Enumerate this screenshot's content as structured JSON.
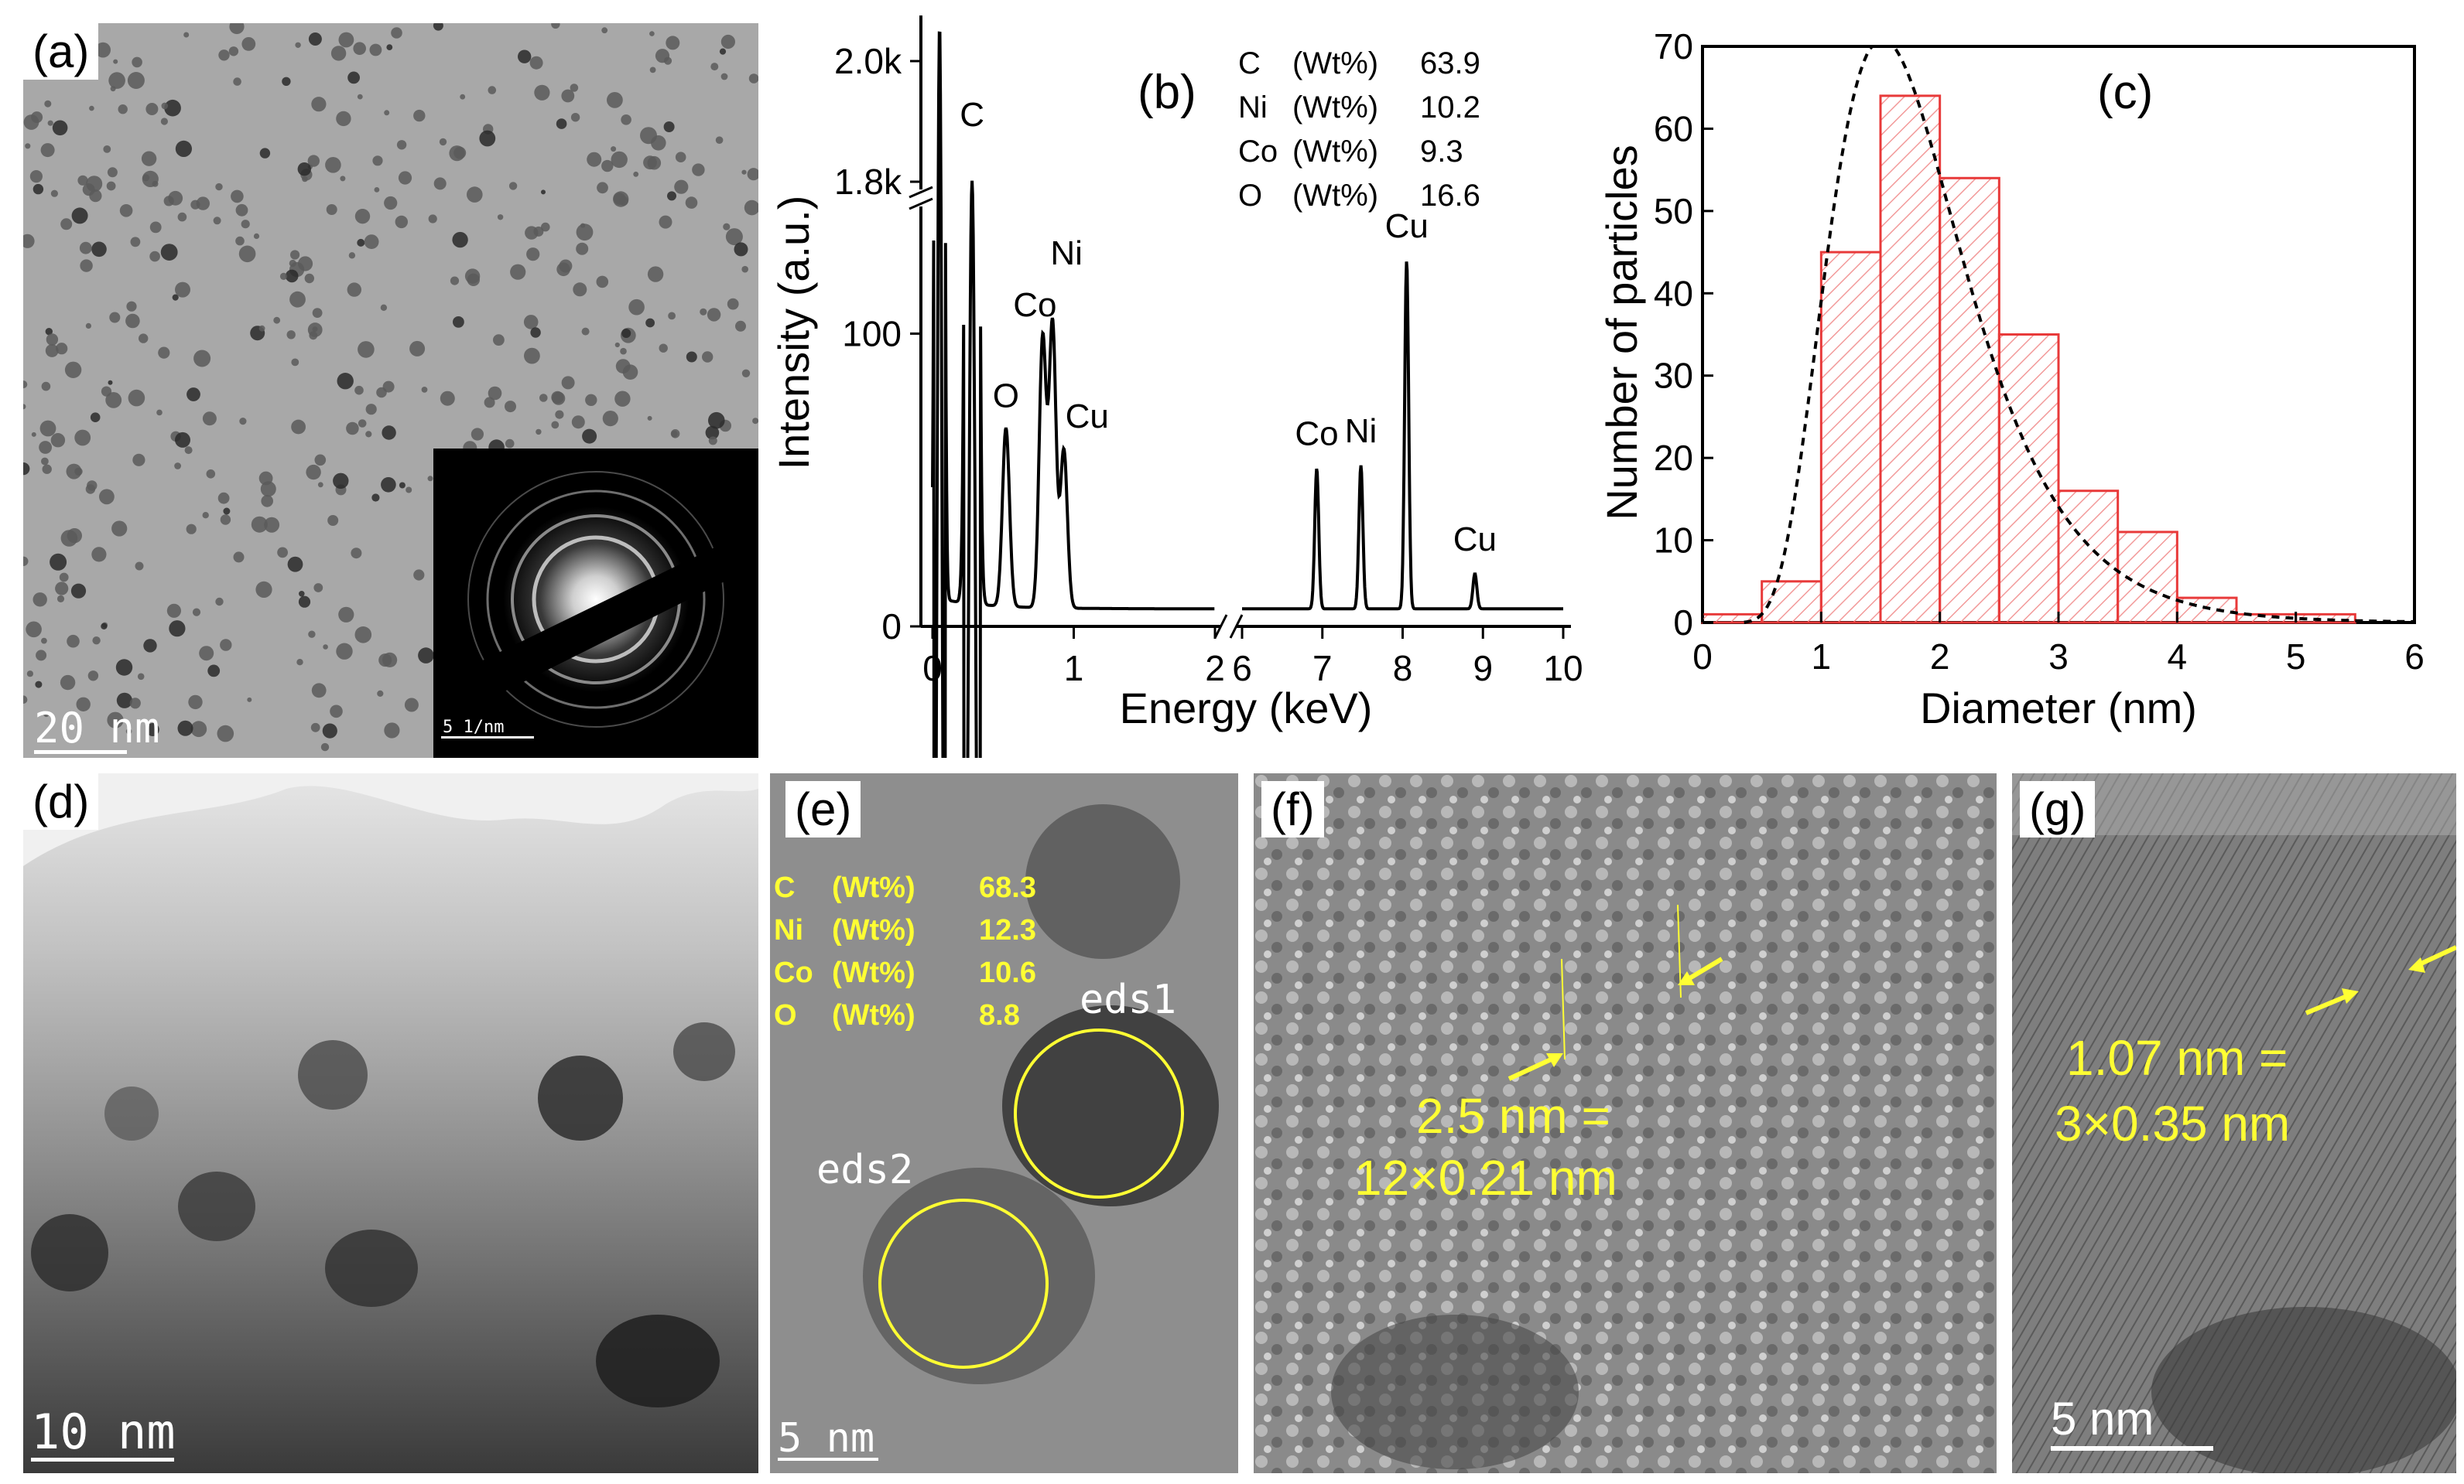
{
  "panels": {
    "a": {
      "label": "(a)",
      "scale_bar": "20 nm",
      "inset_scale_bar": "5 1/nm"
    },
    "b": {
      "label": "(b)",
      "composition": [
        {
          "el": "C",
          "unit": "(Wt%)",
          "val": "63.9"
        },
        {
          "el": "Ni",
          "unit": "(Wt%)",
          "val": "10.2"
        },
        {
          "el": "Co",
          "unit": "(Wt%)",
          "val": "9.3"
        },
        {
          "el": "O",
          "unit": "(Wt%)",
          "val": "16.6"
        }
      ]
    },
    "c": {
      "label": "(c)"
    },
    "d": {
      "label": "(d)",
      "scale_bar": "10 nm"
    },
    "e": {
      "label": "(e)",
      "scale_bar": "5 nm",
      "circle1": "eds1",
      "circle2": "eds2",
      "composition": [
        {
          "el": "C",
          "unit": "(Wt%)",
          "val": "68.3"
        },
        {
          "el": "Ni",
          "unit": "(Wt%)",
          "val": "12.3"
        },
        {
          "el": "Co",
          "unit": "(Wt%)",
          "val": "10.6"
        },
        {
          "el": "O",
          "unit": "(Wt%)",
          "val": "8.8"
        }
      ]
    },
    "f": {
      "label": "(f)",
      "annotation_line1": "2.5 nm =",
      "annotation_line2": "12×0.21 nm"
    },
    "g": {
      "label": "(g)",
      "scale_bar": "5 nm",
      "annotation_line1": "1.07 nm =",
      "annotation_line2": "3×0.35 nm"
    }
  },
  "chart_data": [
    {
      "type": "line",
      "panel": "b",
      "xlabel": "Energy (keV)",
      "ylabel": "Intensity (a.u.)",
      "axis_break_x": [
        2,
        6
      ],
      "axis_break_y": [
        140,
        1800
      ],
      "x_ticks_left": [
        "0",
        "1",
        "2"
      ],
      "x_ticks_right": [
        "6",
        "7",
        "8",
        "9",
        "10"
      ],
      "y_ticks_lower": [
        "0",
        "100"
      ],
      "y_ticks_upper": [
        "1.8k",
        "2.0k"
      ],
      "peaks": [
        {
          "label": "C",
          "x": 0.28,
          "y": 1800
        },
        {
          "label": "O",
          "x": 0.52,
          "y": 67
        },
        {
          "label": "Co",
          "x": 0.78,
          "y": 98
        },
        {
          "label": "Ni",
          "x": 0.85,
          "y": 103
        },
        {
          "label": "Cu",
          "x": 0.93,
          "y": 60
        },
        {
          "label": "Co",
          "x": 6.93,
          "y": 54
        },
        {
          "label": "Ni",
          "x": 7.48,
          "y": 55
        },
        {
          "label": "Cu",
          "x": 8.05,
          "y": 125
        },
        {
          "label": "Cu",
          "x": 8.9,
          "y": 18
        }
      ]
    },
    {
      "type": "bar",
      "panel": "c",
      "xlabel": "Diameter (nm)",
      "ylabel": "Number of particles",
      "xlim": [
        0,
        6
      ],
      "ylim": [
        0,
        70
      ],
      "x_ticks": [
        "0",
        "1",
        "2",
        "3",
        "4",
        "5",
        "6"
      ],
      "y_ticks": [
        "0",
        "10",
        "20",
        "30",
        "40",
        "50",
        "60",
        "70"
      ],
      "bin_width": 0.5,
      "bins": [
        0,
        0.5,
        1.0,
        1.5,
        2.0,
        2.5,
        3.0,
        3.5,
        4.0,
        4.5,
        5.0
      ],
      "values": [
        1,
        5,
        45,
        64,
        54,
        35,
        16,
        11,
        3,
        1,
        1
      ],
      "fit": "log-normal (dashed)",
      "colors": {
        "bar_edge": "#e83a3a",
        "bar_hatch": "#f29a9a",
        "fit": "#000000"
      }
    }
  ]
}
